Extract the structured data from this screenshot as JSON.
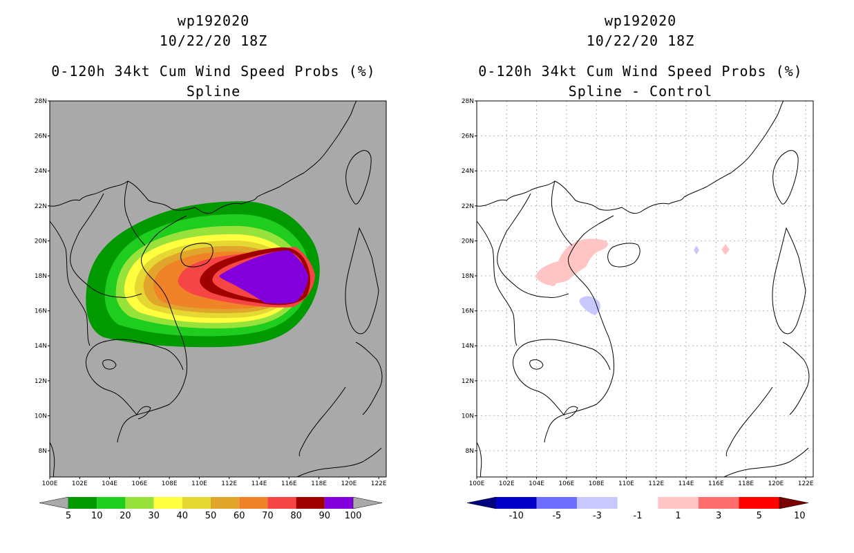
{
  "panels": [
    {
      "id": "left",
      "title_storm": "wp192020",
      "title_time": "10/22/20 18Z",
      "title_product": "0-120h 34kt Cum Wind Speed Probs (%)",
      "title_method": "Spline"
    },
    {
      "id": "right",
      "title_storm": "wp192020",
      "title_time": "10/22/20 18Z",
      "title_product": "0-120h 34kt Cum Wind Speed Probs (%)",
      "title_method": "Spline - Control"
    }
  ],
  "map": {
    "lon_ticks": [
      "100E",
      "102E",
      "104E",
      "106E",
      "108E",
      "110E",
      "112E",
      "114E",
      "116E",
      "118E",
      "120E",
      "122E"
    ],
    "lat_ticks": [
      "8N",
      "10N",
      "12N",
      "14N",
      "16N",
      "18N",
      "20N",
      "22N",
      "24N",
      "26N",
      "28N"
    ],
    "background_left": "#a9a9a9",
    "background_right": "#ffffff"
  },
  "chart_data": [
    {
      "type": "heatmap",
      "title": "0-120h 34kt Cum Wind Speed Probs (%) - Spline",
      "lon_range": [
        100,
        122.5
      ],
      "lat_range": [
        6.5,
        28
      ],
      "colorbar": {
        "labels": [
          "5",
          "10",
          "20",
          "30",
          "40",
          "50",
          "60",
          "70",
          "80",
          "90",
          "100"
        ],
        "colors": [
          "#009a00",
          "#1ecd1e",
          "#98e33b",
          "#ffff40",
          "#e6d832",
          "#e0a52a",
          "#f08228",
          "#f54545",
          "#a00000",
          "#8200dc"
        ],
        "end_colors": [
          "#a9a9a9",
          "#a9a9a9"
        ]
      }
    },
    {
      "type": "heatmap",
      "title": "0-120h 34kt Cum Wind Speed Probs (%) - Spline - Control",
      "lon_range": [
        100,
        122.5
      ],
      "lat_range": [
        6.5,
        28
      ],
      "colorbar": {
        "labels": [
          "-10",
          "-5",
          "-3",
          "-1",
          "1",
          "3",
          "5",
          "10"
        ],
        "colors": [
          "#0000c8",
          "#6e6eff",
          "#c8c8ff",
          "#ffffff",
          "#ffc4c4",
          "#ff6e6e",
          "#ff0000"
        ],
        "end_colors": [
          "#000080",
          "#780000"
        ]
      }
    }
  ]
}
